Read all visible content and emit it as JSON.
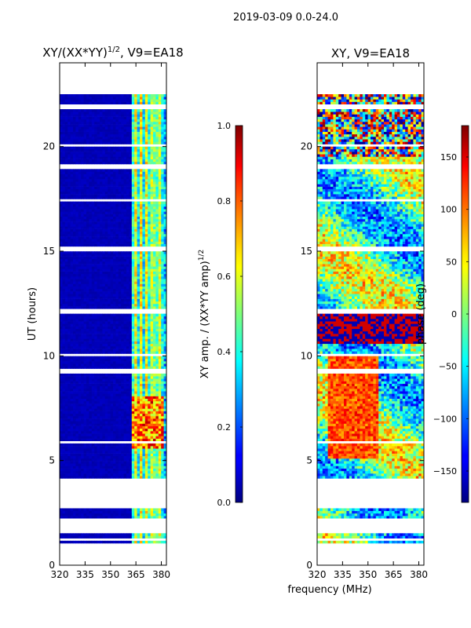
{
  "figure": {
    "suptitle": "2019-03-09 0.0-24.0",
    "shared_xlabel": "frequency (MHz)"
  },
  "chart_data": [
    {
      "type": "heatmap",
      "title_main": "XY/(XX*YY)",
      "title_exp": "1/2",
      "title_suffix": ", V9=EA18",
      "xlabel": "",
      "ylabel": "UT (hours)",
      "xlim": [
        320,
        383
      ],
      "ylim": [
        0,
        24
      ],
      "xticks": [
        320,
        335,
        350,
        365,
        380
      ],
      "yticks": [
        0,
        5,
        10,
        15,
        20
      ],
      "data_extent": {
        "time_start": 1.05,
        "time_end": 22.5,
        "freq_start": 320,
        "freq_end": 383
      },
      "colorbar": {
        "label_main": "XY amp. / (XX*YY amp)",
        "label_exp": "1/2",
        "range": [
          0.0,
          1.0
        ],
        "ticks": [
          "0.0",
          "0.2",
          "0.4",
          "0.6",
          "0.8",
          "1.0"
        ],
        "colormap": "jet"
      }
    },
    {
      "type": "heatmap",
      "title": "XY, V9=EA18",
      "xlabel": "frequency (MHz)",
      "ylabel": "",
      "xlim": [
        320,
        383
      ],
      "ylim": [
        0,
        24
      ],
      "xticks": [
        320,
        335,
        350,
        365,
        380
      ],
      "yticks": [
        0,
        5,
        10,
        15,
        20
      ],
      "data_extent": {
        "time_start": 1.05,
        "time_end": 22.5,
        "freq_start": 320,
        "freq_end": 383
      },
      "colorbar": {
        "label": "phase (deg)",
        "range": [
          -180,
          180
        ],
        "ticks": [
          "−150",
          "−100",
          "−50",
          "0",
          "50",
          "100",
          "150"
        ],
        "colormap": "jet"
      }
    }
  ]
}
